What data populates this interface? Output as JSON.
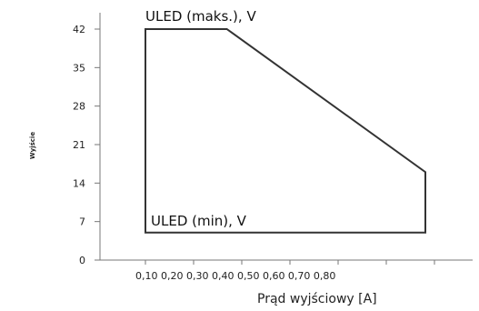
{
  "chart_data": {
    "type": "area",
    "title": "",
    "xlabel": "Prąd wyjściowy [A]",
    "ylabel": "Wyjście",
    "yticks": [
      0,
      7,
      14,
      21,
      28,
      35,
      42
    ],
    "xtick_text": "0,10 0,20 0,30 0,40 0,50 0,60 0,70 0,80",
    "ylim": [
      0,
      42
    ],
    "series": [
      {
        "name": "ULED (maks.), V",
        "x": [
          0.1,
          0.42,
          1.2
        ],
        "y": [
          42,
          42,
          16
        ]
      },
      {
        "name": "ULED (min), V",
        "x": [
          0.1,
          1.2
        ],
        "y": [
          5,
          5
        ]
      }
    ],
    "annotations": {
      "max": "ULED (maks.), V",
      "min": "ULED (min), V"
    }
  }
}
